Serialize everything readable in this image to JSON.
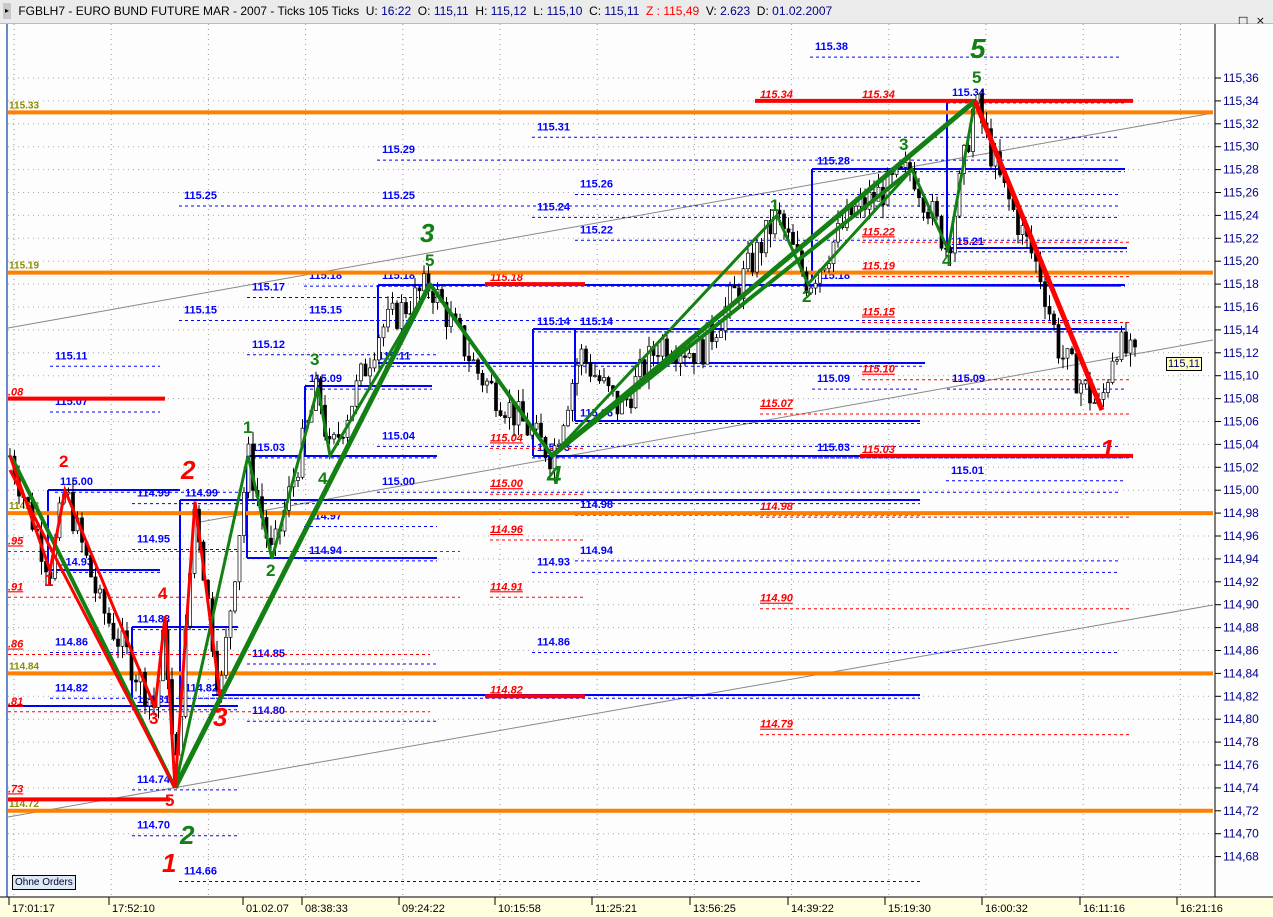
{
  "header": {
    "instrument": "FGBLH7 - EURO BUND FUTURE  MAR - 2007 - Ticks 105 Ticks",
    "u_label": "U:",
    "u": "16:22",
    "o_label": "O:",
    "o": "115,11",
    "h_label": "H:",
    "h": "115,12",
    "l_label": "L:",
    "l": "115,10",
    "c_label": "C:",
    "c": "115,11",
    "z": "Z : 115,49",
    "v_label": "V:",
    "v": "2.623",
    "d_label": "D:",
    "d": "01.02.2007",
    "window_buttons": "_ □ ×"
  },
  "ohne_orders_button": "Ohne Orders",
  "last_price_tag": "115,11",
  "colors": {
    "orange": "#ff8000",
    "red": "#ff0000",
    "green": "#138013",
    "blue": "#0000ff",
    "olive": "#8b8b00",
    "axis": "#00008b"
  },
  "chart_data": {
    "type": "candlestick",
    "title": "",
    "y_ticks": [
      "115,36",
      "115,34",
      "115,32",
      "115,30",
      "115,28",
      "115,26",
      "115,24",
      "115,22",
      "115,20",
      "115,18",
      "115,16",
      "115,14",
      "115,12",
      "115,10",
      "115,08",
      "115,06",
      "115,04",
      "115,02",
      "115,00",
      "114,98",
      "114,96",
      "114,94",
      "114,92",
      "114,90",
      "114,88",
      "114,86",
      "114,84",
      "114,82",
      "114,80",
      "114,78",
      "114,76",
      "114,74",
      "114,72",
      "114,70",
      "114,68"
    ],
    "ylim": [
      114.66,
      115.39
    ],
    "x_ticks": [
      "17:01:17",
      "17:52:10",
      "01.02.07",
      "08:38:33",
      "09:24:22",
      "10:15:58",
      "11:25:21",
      "13:56:25",
      "14:39:22",
      "15:19:30",
      "16:00:32",
      "16:11:16",
      "16:21:16"
    ],
    "price_pivots": [
      115.03,
      114.93,
      115.0,
      114.9,
      114.81,
      114.88,
      114.74,
      114.99,
      114.82,
      115.03,
      114.94,
      115.09,
      115.03,
      115.14,
      115.18,
      115.1,
      115.03,
      115.12,
      115.07,
      115.13,
      115.12,
      115.18,
      115.24,
      115.18,
      115.24,
      115.28,
      115.21,
      115.34,
      115.27,
      115.19,
      115.12,
      115.07,
      115.13,
      115.11
    ],
    "orange_levels": [
      {
        "price": 115.33,
        "label": "115.33"
      },
      {
        "price": 115.19,
        "label": "115.19"
      },
      {
        "price": 114.98,
        "label": "114.98"
      },
      {
        "price": 114.84,
        "label": "114.84"
      },
      {
        "price": 114.72,
        "label": "114.72"
      }
    ],
    "red_thick_levels": [
      115.34,
      115.03,
      115.18,
      114.82,
      115.08,
      114.73
    ],
    "blue_labels": [
      "115.38",
      "115.31",
      "115.29",
      "115.28",
      "115.26",
      "115.25",
      "115.25",
      "115.24",
      "115.22",
      "115.21",
      "115.18",
      "115.18",
      "115.18",
      "115.17",
      "115.15",
      "115.15",
      "115.14",
      "115.14",
      "115.12",
      "115.11",
      "115.11",
      "115.09",
      "115.09",
      "115.09",
      "115.07",
      "115.06",
      "115.04",
      "115.03",
      "115.03",
      "115.03",
      "115.01",
      "115.00",
      "115.00",
      "114.99",
      "114.99",
      "114.98",
      "114.97",
      "114.95",
      "114.94",
      "114.94",
      "114.93",
      "114.93",
      "114.88",
      "114.86",
      "114.86",
      "114.85",
      "114.82",
      "114.82",
      "114.81",
      "114.80",
      "114.74",
      "114.70",
      "114.66",
      "115.34"
    ],
    "red_labels": [
      "115.34",
      "115.34",
      "115.22",
      "115.19",
      "115.18",
      "115.15",
      "115.10",
      "115.07",
      "115.04",
      "115.03",
      "115.00",
      "114.98",
      "114.96",
      "114.91",
      "114.90",
      "114.82",
      "114.79",
      ".08",
      ".95",
      ".91",
      ".86",
      ".81",
      ".73"
    ],
    "green_wave_prices": [
      114.74,
      115.03,
      114.94,
      115.09,
      115.03,
      115.18,
      115.03,
      115.24,
      115.18,
      115.28,
      115.21,
      115.34
    ],
    "red_wave_prices": [
      115.03,
      114.93,
      115.0,
      114.81,
      114.89,
      114.74,
      114.99,
      114.82,
      115.34,
      115.07
    ],
    "wave_labels_green": [
      "5",
      "3",
      "4",
      "2",
      "5",
      "5",
      "1",
      "2",
      "3",
      "4",
      "1",
      "2",
      "3",
      "4"
    ],
    "wave_labels_red": [
      "1",
      "2",
      "3",
      "4",
      "5",
      "2",
      "3",
      "1",
      "1"
    ]
  }
}
